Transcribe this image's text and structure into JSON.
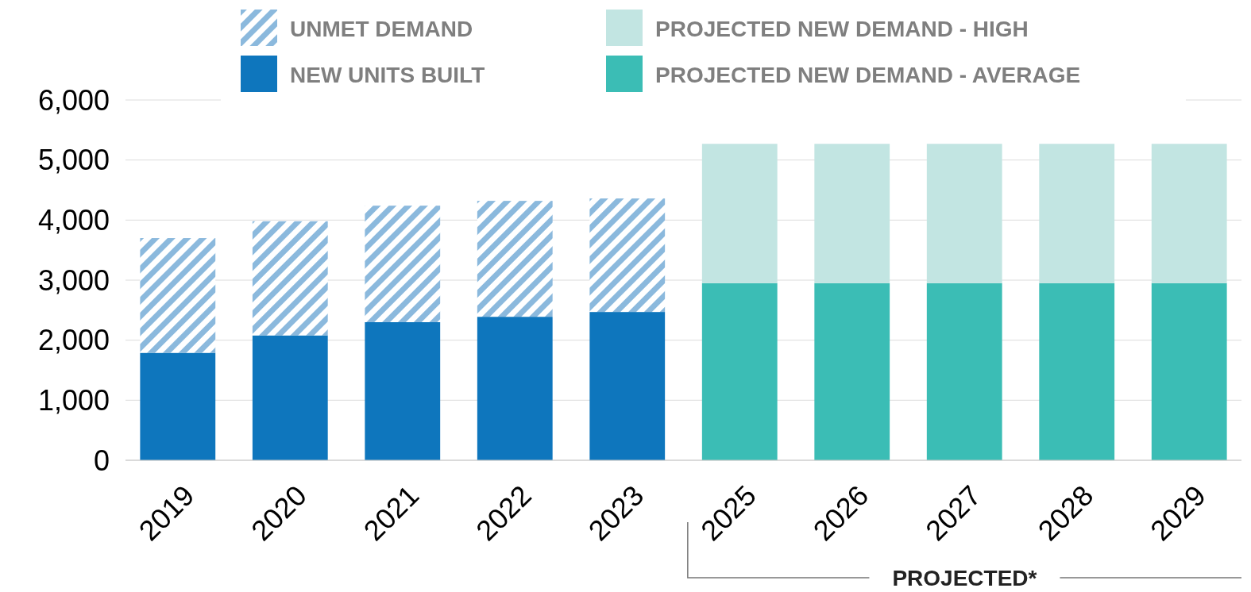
{
  "chart_data": {
    "type": "bar",
    "stacked": true,
    "categories": [
      "2019",
      "2020",
      "2021",
      "2022",
      "2023",
      "2025",
      "2026",
      "2027",
      "2028",
      "2029"
    ],
    "series": [
      {
        "name": "NEW UNITS BUILT",
        "color": "#0e76bd",
        "values": [
          1790,
          2080,
          2300,
          2390,
          2470,
          null,
          null,
          null,
          null,
          null
        ]
      },
      {
        "name": "UNMET DEMAND",
        "color": "#8bb9dd",
        "values": [
          1910,
          1900,
          1940,
          1930,
          1890,
          null,
          null,
          null,
          null,
          null
        ]
      },
      {
        "name": "PROJECTED NEW DEMAND - AVERAGE",
        "color": "#3bbdb5",
        "values": [
          null,
          null,
          null,
          null,
          null,
          2950,
          2950,
          2950,
          2950,
          2950
        ]
      },
      {
        "name": "PROJECTED NEW DEMAND - HIGH",
        "color": "#c2e5e2",
        "values": [
          null,
          null,
          null,
          null,
          null,
          2320,
          2320,
          2320,
          2320,
          2320
        ]
      }
    ],
    "ylim": [
      0,
      6000
    ],
    "yticks": [
      {
        "value": 0,
        "label": "0"
      },
      {
        "value": 1000,
        "label": "1,000"
      },
      {
        "value": 2000,
        "label": "2,000"
      },
      {
        "value": 3000,
        "label": "3,000"
      },
      {
        "value": 4000,
        "label": "4,000"
      },
      {
        "value": 5000,
        "label": "5,000"
      },
      {
        "value": 6000,
        "label": "6,000"
      }
    ],
    "grid": "y",
    "legend": "top",
    "annotations": [
      "PROJECTED*"
    ]
  }
}
